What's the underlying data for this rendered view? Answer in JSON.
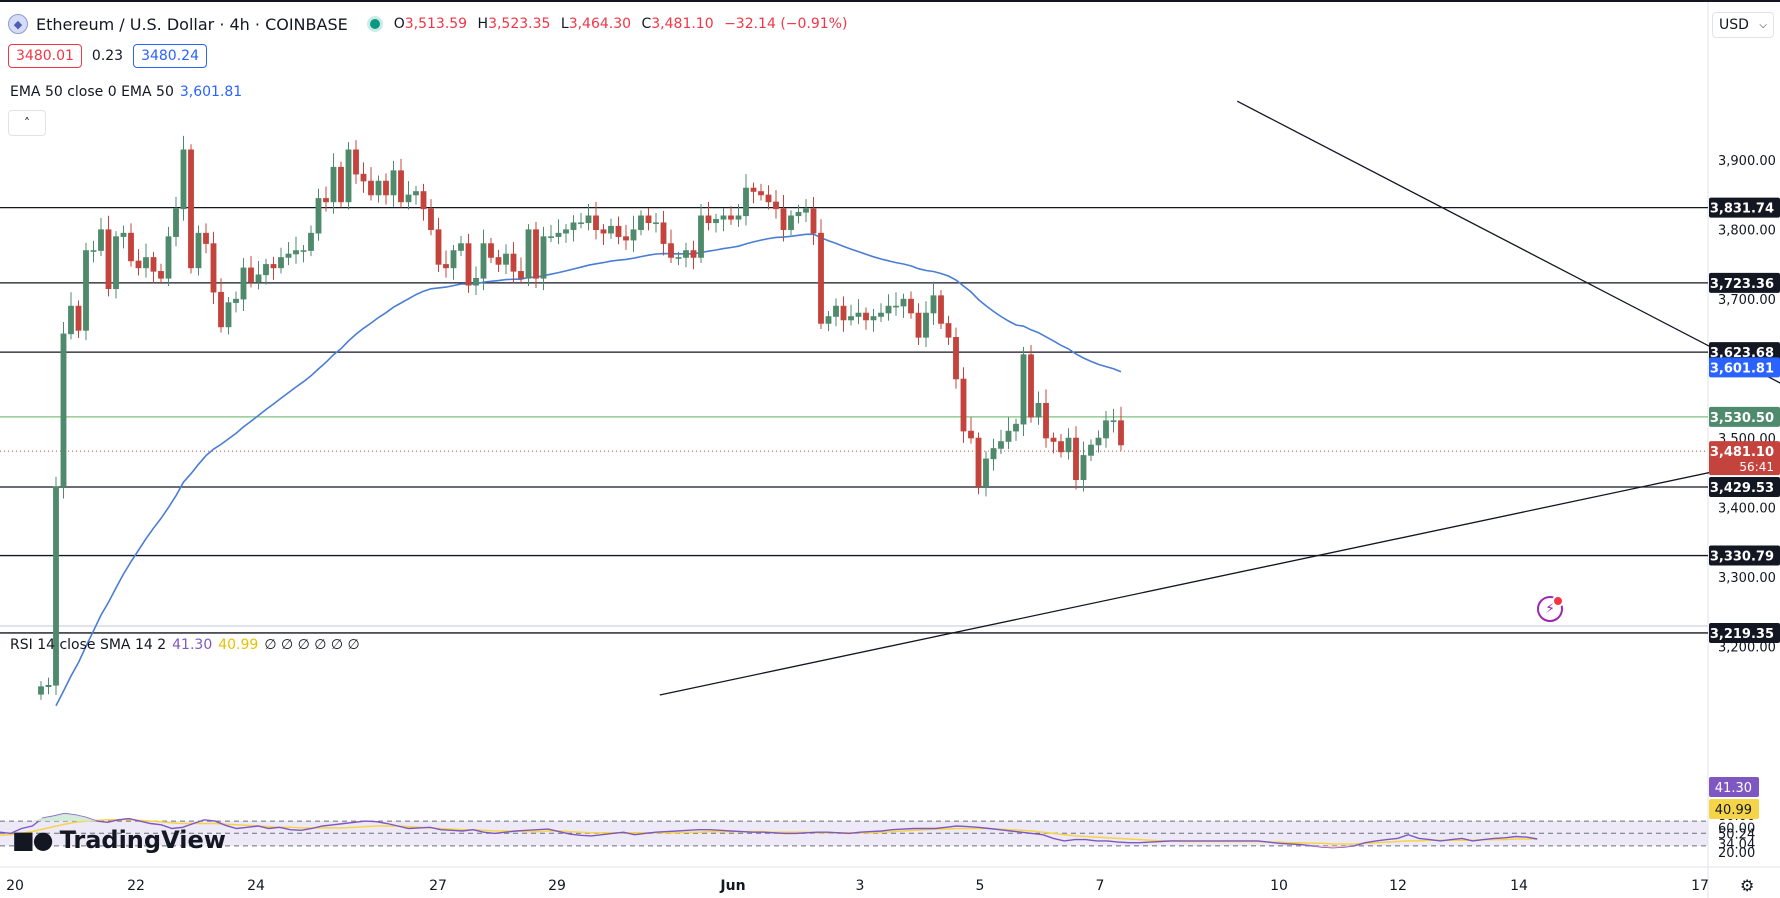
{
  "header": {
    "title": "Ethereum / U.S. Dollar · 4h · COINBASE",
    "logo_icon": "ethereum-icon",
    "ohlc": {
      "o_label": "O",
      "o": "3,513.59",
      "h_label": "H",
      "h": "3,523.35",
      "l_label": "L",
      "l": "3,464.30",
      "c_label": "C",
      "c": "3,481.10",
      "change": "−32.14 (−0.91%)"
    },
    "bid": "3480.01",
    "spread": "0.23",
    "ask": "3480.24"
  },
  "ema_legend": {
    "label": "EMA 50 close 0 EMA 50",
    "value": "3,601.81"
  },
  "rsi_legend": {
    "label": "RSI 14 close SMA 14 2",
    "rsi": "41.30",
    "sma": "40.99",
    "zeros": "∅ ∅ ∅ ∅ ∅ ∅"
  },
  "currency": "USD",
  "brand": "TradingView",
  "colors": {
    "up": "#4f8a6c",
    "down": "#c4443d",
    "ema": "#4a7dd6",
    "rsi": "#7e57c2",
    "rsi_sma": "#f5d547",
    "rsi_band": "#ede9f7"
  },
  "chart_data": [
    {
      "type": "candlestick",
      "symbol": "Ethereum / U.S. Dollar",
      "interval": "4h",
      "exchange": "COINBASE",
      "price_axis": {
        "ticks": [
          "3,900.00",
          "3,800.00",
          "3,700.00",
          "3,500.00",
          "3,400.00",
          "3,300.00",
          "3,200.00"
        ],
        "ylim": [
          3130,
          3960
        ]
      },
      "time_axis": {
        "ticks": [
          "20",
          "22",
          "24",
          "27",
          "29",
          "Jun",
          "3",
          "5",
          "7",
          "10",
          "12",
          "14",
          "17"
        ]
      },
      "horizontal_levels": [
        "3,831.74",
        "3,723.36",
        "3,623.68",
        "3,429.53",
        "3,330.79",
        "3,219.35"
      ],
      "green_level": "3,530.50",
      "current_price": "3,481.10",
      "countdown": "56:41",
      "ema_value": "3,601.81",
      "trendlines": [
        {
          "name": "descending resistance",
          "from": [
            159.5,
            3985
          ],
          "to": [
            245.5,
            3503
          ]
        },
        {
          "name": "ascending support",
          "from": [
            82.5,
            3130
          ],
          "to": [
            245.5,
            3503
          ]
        }
      ],
      "candles_open_close": [
        [
          3131,
          3142
        ],
        [
          3142,
          3144
        ],
        [
          3144,
          3430
        ],
        [
          3430,
          3650
        ],
        [
          3650,
          3690
        ],
        [
          3690,
          3655
        ],
        [
          3655,
          3770
        ],
        [
          3770,
          3770
        ],
        [
          3770,
          3800
        ],
        [
          3800,
          3715
        ],
        [
          3715,
          3790
        ],
        [
          3790,
          3795
        ],
        [
          3795,
          3755
        ],
        [
          3755,
          3745
        ],
        [
          3745,
          3760
        ],
        [
          3760,
          3740
        ],
        [
          3740,
          3730
        ],
        [
          3730,
          3790
        ],
        [
          3790,
          3830
        ],
        [
          3830,
          3915
        ],
        [
          3915,
          3745
        ],
        [
          3745,
          3795
        ],
        [
          3795,
          3780
        ],
        [
          3780,
          3710
        ],
        [
          3710,
          3660
        ],
        [
          3660,
          3695
        ],
        [
          3695,
          3700
        ],
        [
          3700,
          3745
        ],
        [
          3745,
          3725
        ],
        [
          3725,
          3735
        ],
        [
          3735,
          3750
        ],
        [
          3750,
          3745
        ],
        [
          3745,
          3760
        ],
        [
          3760,
          3765
        ],
        [
          3765,
          3770
        ],
        [
          3770,
          3770
        ],
        [
          3770,
          3795
        ],
        [
          3795,
          3845
        ],
        [
          3845,
          3840
        ],
        [
          3840,
          3890
        ],
        [
          3890,
          3840
        ],
        [
          3840,
          3915
        ],
        [
          3915,
          3880
        ],
        [
          3880,
          3870
        ],
        [
          3870,
          3850
        ],
        [
          3850,
          3870
        ],
        [
          3870,
          3850
        ],
        [
          3850,
          3885
        ],
        [
          3885,
          3840
        ],
        [
          3840,
          3850
        ],
        [
          3850,
          3855
        ],
        [
          3855,
          3830
        ],
        [
          3830,
          3800
        ],
        [
          3800,
          3750
        ],
        [
          3750,
          3745
        ],
        [
          3745,
          3770
        ],
        [
          3770,
          3780
        ],
        [
          3780,
          3720
        ],
        [
          3720,
          3730
        ],
        [
          3730,
          3780
        ],
        [
          3780,
          3760
        ],
        [
          3760,
          3750
        ],
        [
          3750,
          3765
        ],
        [
          3765,
          3740
        ],
        [
          3740,
          3730
        ],
        [
          3730,
          3800
        ],
        [
          3800,
          3730
        ],
        [
          3730,
          3790
        ],
        [
          3790,
          3790
        ],
        [
          3790,
          3795
        ],
        [
          3795,
          3800
        ],
        [
          3800,
          3810
        ],
        [
          3810,
          3810
        ],
        [
          3810,
          3820
        ],
        [
          3820,
          3800
        ],
        [
          3800,
          3795
        ],
        [
          3795,
          3805
        ],
        [
          3805,
          3790
        ],
        [
          3790,
          3785
        ],
        [
          3785,
          3800
        ],
        [
          3800,
          3820
        ],
        [
          3820,
          3810
        ],
        [
          3810,
          3810
        ],
        [
          3810,
          3780
        ],
        [
          3780,
          3760
        ],
        [
          3760,
          3760
        ],
        [
          3760,
          3770
        ],
        [
          3770,
          3760
        ],
        [
          3760,
          3820
        ],
        [
          3820,
          3810
        ],
        [
          3810,
          3815
        ],
        [
          3815,
          3820
        ],
        [
          3820,
          3815
        ],
        [
          3815,
          3820
        ],
        [
          3820,
          3860
        ],
        [
          3860,
          3855
        ],
        [
          3855,
          3850
        ],
        [
          3850,
          3840
        ],
        [
          3840,
          3830
        ],
        [
          3830,
          3800
        ],
        [
          3800,
          3820
        ],
        [
          3820,
          3825
        ],
        [
          3825,
          3830
        ],
        [
          3830,
          3795
        ],
        [
          3795,
          3665
        ],
        [
          3665,
          3675
        ],
        [
          3675,
          3690
        ],
        [
          3690,
          3670
        ],
        [
          3670,
          3675
        ],
        [
          3675,
          3680
        ],
        [
          3680,
          3670
        ],
        [
          3670,
          3675
        ],
        [
          3675,
          3680
        ],
        [
          3680,
          3690
        ],
        [
          3690,
          3690
        ],
        [
          3690,
          3700
        ],
        [
          3700,
          3680
        ],
        [
          3680,
          3645
        ],
        [
          3645,
          3680
        ],
        [
          3680,
          3705
        ],
        [
          3705,
          3665
        ],
        [
          3665,
          3645
        ],
        [
          3645,
          3585
        ],
        [
          3585,
          3510
        ],
        [
          3510,
          3500
        ],
        [
          3500,
          3430
        ],
        [
          3430,
          3470
        ],
        [
          3470,
          3485
        ],
        [
          3485,
          3495
        ],
        [
          3495,
          3510
        ],
        [
          3510,
          3520
        ],
        [
          3520,
          3620
        ],
        [
          3620,
          3530
        ],
        [
          3530,
          3550
        ],
        [
          3550,
          3500
        ],
        [
          3500,
          3495
        ],
        [
          3495,
          3480
        ],
        [
          3480,
          3500
        ],
        [
          3500,
          3440
        ],
        [
          3440,
          3475
        ],
        [
          3475,
          3490
        ],
        [
          3490,
          3500
        ],
        [
          3500,
          3525
        ],
        [
          3525,
          3525
        ],
        [
          3525,
          3490
        ]
      ]
    },
    {
      "type": "line",
      "title": "RSI 14 close SMA 14 2",
      "series": [
        {
          "name": "RSI",
          "values": [
            52,
            50,
            58,
            62,
            75,
            78,
            82,
            80,
            76,
            70,
            68,
            72,
            74,
            70,
            66,
            64,
            58,
            60,
            66,
            72,
            70,
            63,
            58,
            60,
            62,
            58,
            60,
            56,
            55,
            58,
            62,
            64,
            66,
            68,
            70,
            69,
            66,
            62,
            58,
            59,
            60,
            56,
            55,
            54,
            56,
            52,
            50,
            52,
            54,
            55,
            56,
            57,
            53,
            49,
            47,
            46,
            48,
            50,
            52,
            48,
            50,
            52,
            53,
            54,
            55,
            56,
            56,
            55,
            54,
            53,
            52,
            52,
            51,
            50,
            50,
            51,
            52,
            52,
            51,
            50,
            52,
            53,
            54,
            56,
            57,
            58,
            58,
            58,
            60,
            62,
            61,
            60,
            58,
            56,
            54,
            52,
            50,
            48,
            42,
            38,
            40,
            40,
            38,
            38,
            36,
            35,
            35,
            36,
            37,
            38,
            38,
            38,
            38,
            38,
            38,
            38,
            38,
            38,
            36,
            34,
            33,
            32,
            30,
            28,
            27,
            28,
            30,
            35,
            38,
            40,
            42,
            48,
            42,
            40,
            38,
            40,
            42,
            38,
            40,
            42,
            43,
            45,
            44,
            41
          ]
        },
        {
          "name": "SMA",
          "values": [
            47,
            48,
            50,
            53,
            57,
            61,
            65,
            68,
            70,
            71,
            72,
            72,
            72,
            71,
            70,
            69,
            67,
            66,
            66,
            66,
            66,
            65,
            64,
            63,
            62,
            61,
            60,
            60,
            59,
            59,
            59,
            59,
            59,
            60,
            61,
            62,
            62,
            62,
            61,
            60,
            59,
            58,
            57,
            56,
            56,
            55,
            54,
            54,
            54,
            53,
            53,
            54,
            54,
            53,
            52,
            51,
            51,
            51,
            51,
            51,
            51,
            51,
            51,
            51,
            52,
            52,
            53,
            53,
            53,
            53,
            53,
            53,
            52,
            52,
            52,
            52,
            51,
            51,
            51,
            51,
            51,
            51,
            52,
            53,
            54,
            55,
            56,
            57,
            57,
            58,
            58,
            58,
            58,
            57,
            56,
            55,
            54,
            52,
            50,
            48,
            46,
            45,
            44,
            43,
            42,
            41,
            40,
            39,
            38,
            38,
            37,
            37,
            37,
            37,
            37,
            37,
            37,
            37,
            36,
            36,
            35,
            35,
            34,
            34,
            33,
            33,
            33,
            34,
            35,
            36,
            37,
            38,
            38,
            39,
            39,
            39,
            39,
            39,
            40,
            40,
            40,
            41,
            41,
            41
          ]
        }
      ],
      "levels": [
        "80.00",
        "60.00",
        "50.24",
        "34.04",
        "20.00"
      ],
      "rsi_value": "41.30",
      "sma_value": "40.99",
      "ylim": [
        15,
        100
      ]
    }
  ]
}
